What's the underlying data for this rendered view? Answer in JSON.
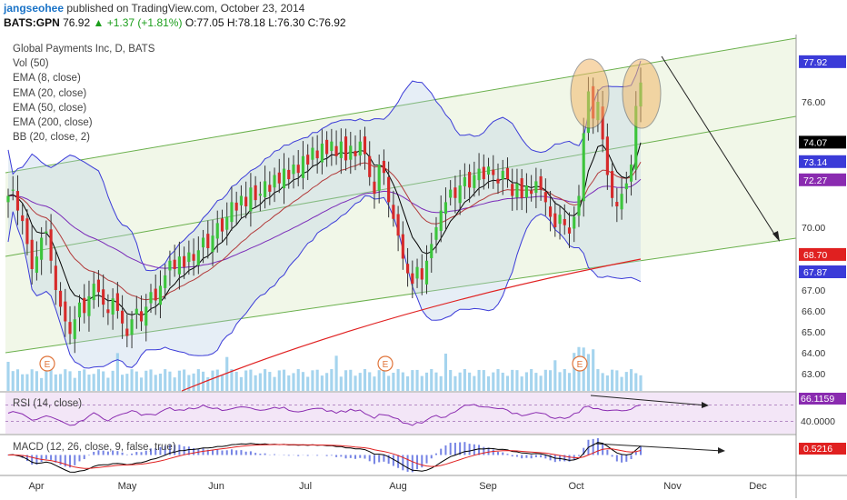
{
  "header": {
    "username": "jangseohee",
    "published": "published on TradingView.com, October 23, 2014"
  },
  "quote": {
    "symbol": "BATS:GPN",
    "last": "76.92",
    "arrow": "▲",
    "change": "+1.37 (+1.81%)",
    "ohlc": "O:77.05 H:78.18 L:76.30 C:76.92"
  },
  "legend": [
    "Global Payments Inc, D, BATS",
    "Vol (50)",
    "EMA (8, close)",
    "EMA (20, close)",
    "EMA (50, close)",
    "EMA (200, close)",
    "BB (20, close, 2)"
  ],
  "rsi_label": "RSI (14, close)",
  "macd_label": "MACD (12, 26, close, 9, false, true)",
  "colors": {
    "up": "#3cc43c",
    "down": "#d62a2a",
    "bb": "#3b3bd8",
    "ema8": "#000000",
    "ema20": "#b23a3a",
    "ema50": "#7a2ab8",
    "ema200": "#e02020",
    "channel": "#6ab04c",
    "rsi": "#8a2bb0",
    "volume": "#8ec9ea"
  },
  "chart_data": {
    "type": "candlestick",
    "title": "Global Payments Inc, D, BATS",
    "y_axis_ticks": [
      63.0,
      64.0,
      65.0,
      66.0,
      67.0,
      70.0,
      76.0
    ],
    "y_axis_tick_labels": [
      "63.00",
      "64.00",
      "65.00",
      "66.00",
      "67.00",
      "70.00",
      "76.00"
    ],
    "x_axis_ticks": [
      "Apr",
      "May",
      "Jun",
      "Jul",
      "Aug",
      "Sep",
      "Oct",
      "Nov",
      "Dec"
    ],
    "price_badges": [
      {
        "value": "77.92",
        "color": "#3b3bd8",
        "text_color": "#ffffff"
      },
      {
        "value": "74.07",
        "color": "#000000",
        "text_color": "#ffffff"
      },
      {
        "value": "73.14",
        "color": "#3b3bd8",
        "text_color": "#ffffff"
      },
      {
        "value": "72.27",
        "color": "#8a2bb0",
        "text_color": "#ffffff"
      },
      {
        "value": "68.70",
        "color": "#e02020",
        "text_color": "#ffffff"
      },
      {
        "value": "67.87",
        "color": "#3b3bd8",
        "text_color": "#ffffff"
      }
    ],
    "rsi_badge": "66.1159",
    "rsi_ticks": [
      "40.0000"
    ],
    "macd_badge": "0.5216",
    "earnings_markers": [
      "Apr",
      "Jul/Aug",
      "Oct"
    ],
    "annotations": [
      "earnings marker E",
      "channel lines",
      "downward arrow",
      "divergence lines on RSI and MACD",
      "highlighted ellipses around October highs"
    ],
    "closes": [
      71.5,
      71.8,
      70.8,
      70.3,
      69.2,
      68.0,
      68.6,
      69.5,
      69.8,
      68.4,
      67.0,
      66.2,
      65.5,
      64.9,
      65.6,
      66.4,
      65.9,
      66.7,
      67.3,
      66.9,
      66.3,
      65.9,
      66.6,
      66.0,
      65.4,
      64.8,
      65.6,
      66.1,
      65.5,
      66.2,
      66.9,
      66.5,
      67.2,
      67.7,
      68.4,
      68.0,
      68.6,
      68.1,
      68.8,
      68.4,
      68.9,
      69.5,
      69.0,
      69.6,
      70.2,
      69.8,
      70.5,
      71.2,
      70.8,
      71.5,
      71.0,
      71.9,
      71.3,
      71.6,
      72.2,
      71.7,
      72.5,
      72.1,
      72.8,
      72.3,
      73.0,
      72.6,
      73.4,
      73.0,
      73.8,
      73.3,
      74.0,
      73.5,
      74.1,
      73.4,
      74.1,
      73.2,
      73.9,
      73.4,
      74.1,
      73.5,
      72.4,
      71.6,
      73.0,
      72.6,
      71.2,
      70.4,
      69.6,
      68.5,
      67.8,
      67.3,
      68.1,
      67.5,
      68.4,
      69.2,
      70.0,
      70.8,
      71.2,
      71.8,
      71.4,
      72.0,
      72.4,
      71.9,
      72.5,
      72.8,
      72.3,
      72.9,
      72.5,
      72.1,
      72.7,
      72.3,
      71.5,
      72.1,
      71.4,
      72.0,
      71.6,
      72.2,
      71.8,
      71.2,
      70.5,
      70.0,
      70.6,
      70.1,
      69.7,
      70.5,
      71.5,
      74.5,
      76.5,
      75.2,
      76.0,
      74.2,
      72.5,
      71.4,
      71.0,
      71.6,
      72.1,
      73.0,
      75.8,
      76.92
    ],
    "rsi_range": [
      0,
      100
    ],
    "macd_range": [
      -2,
      2
    ]
  }
}
